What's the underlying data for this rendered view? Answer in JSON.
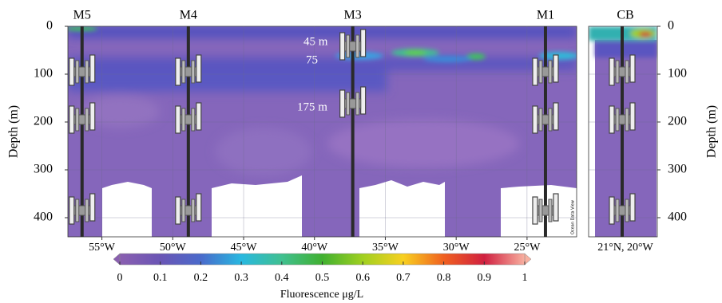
{
  "chart_data": {
    "type": "section",
    "y_label": "Depth (m)",
    "ylim": [
      0,
      440
    ],
    "yticks": [
      0,
      100,
      200,
      300,
      400
    ],
    "xlim": [
      -57.4,
      -21.5
    ],
    "xticks": [
      {
        "value": -55,
        "label": "55°W"
      },
      {
        "value": -50,
        "label": "50°W"
      },
      {
        "value": -45,
        "label": "45°W"
      },
      {
        "value": -40,
        "label": "40°W"
      },
      {
        "value": -35,
        "label": "35°W"
      },
      {
        "value": -30,
        "label": "30°W"
      },
      {
        "value": -25,
        "label": "25°W"
      }
    ],
    "grid": true,
    "moorings": [
      {
        "name": "M5",
        "lon": -56.4
      },
      {
        "name": "M4",
        "lon": -48.9
      },
      {
        "name": "M3",
        "lon": -37.3
      },
      {
        "name": "M1",
        "lon": -23.7
      }
    ],
    "annotations": [
      "45 m",
      "75",
      "175 m"
    ],
    "inset": {
      "name": "CB",
      "x_label": "21°N, 20°W"
    },
    "colorbar": {
      "label": "Fluorescence μg/L",
      "lim": [
        0,
        1
      ],
      "ticks": [
        0,
        0.1,
        0.2,
        0.3,
        0.4,
        0.5,
        0.6,
        0.7,
        0.8,
        0.9,
        1
      ],
      "colors": [
        "#8a5fb0",
        "#6a55b5",
        "#4a6acb",
        "#28b8e0",
        "#40c090",
        "#40b030",
        "#a0d020",
        "#f8d020",
        "#f06020",
        "#d02040",
        "#f8b0a0"
      ]
    },
    "credit": "Ocean Data View"
  }
}
